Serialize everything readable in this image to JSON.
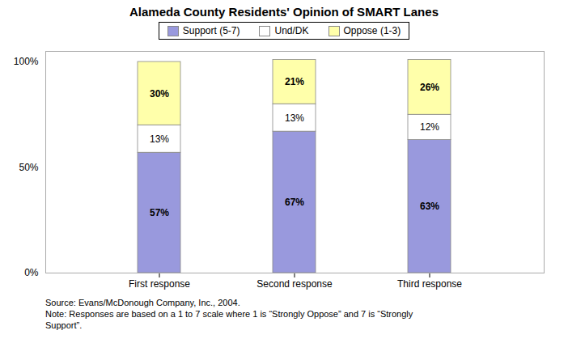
{
  "chart_data": {
    "type": "bar",
    "title": "Alameda County Residents' Opinion of SMART Lanes",
    "categories": [
      "First response",
      "Second response",
      "Third response"
    ],
    "series": [
      {
        "name": "Support (5-7)",
        "color": "#9999dd",
        "values": [
          57,
          67,
          63
        ],
        "value_labels": [
          "57%",
          "67%",
          "63%"
        ]
      },
      {
        "name": "Und/DK",
        "color": "#ffffff",
        "values": [
          13,
          13,
          12
        ],
        "value_labels": [
          "13%",
          "13%",
          "12%"
        ]
      },
      {
        "name": "Oppose (1-3)",
        "color": "#ffffaa",
        "values": [
          30,
          21,
          26
        ],
        "value_labels": [
          "30%",
          "21%",
          "26%"
        ]
      }
    ],
    "stacked": true,
    "data_labels": true,
    "ylim": [
      0,
      105
    ],
    "yticks": [
      {
        "value": 0,
        "label": "0%"
      },
      {
        "value": 50,
        "label": "50%"
      },
      {
        "value": 100,
        "label": "100%"
      }
    ],
    "grid": false,
    "legend": "top",
    "annotations": [
      "Source: Evans/McDonough Company, Inc., 2004.",
      "Note: Responses are based on a 1 to 7 scale where 1 is “Strongly Oppose” and 7 is “Strongly",
      "Support”."
    ]
  }
}
